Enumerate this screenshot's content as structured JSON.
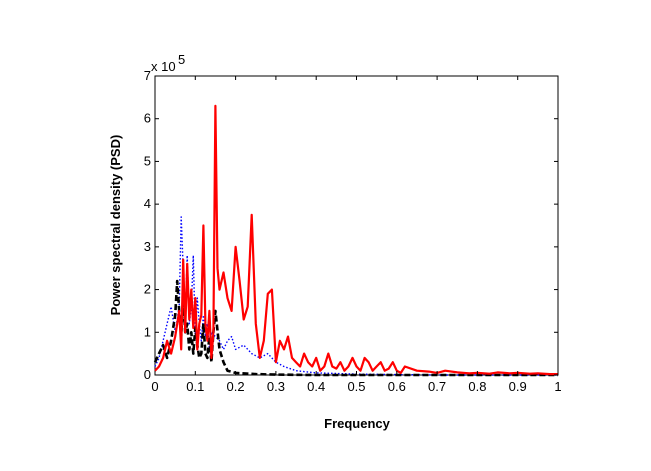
{
  "chart_data": {
    "type": "line",
    "title": "",
    "xlabel": "Frequency",
    "ylabel": "Power spectral density (PSD)",
    "xlim": [
      0,
      1
    ],
    "ylim": [
      0,
      7
    ],
    "y_scale_label": "x 10",
    "y_scale_exponent": "5",
    "xticks": [
      "0",
      "0.1",
      "0.2",
      "0.3",
      "0.4",
      "0.5",
      "0.6",
      "0.7",
      "0.8",
      "0.9",
      "1"
    ],
    "yticks": [
      "0",
      "1",
      "2",
      "3",
      "4",
      "5",
      "6",
      "7"
    ],
    "grid": false,
    "series": [
      {
        "color": "#0000ff",
        "style": "dotted",
        "x": [
          0,
          0.01,
          0.02,
          0.03,
          0.04,
          0.05,
          0.06,
          0.065,
          0.07,
          0.075,
          0.08,
          0.085,
          0.09,
          0.095,
          0.1,
          0.105,
          0.11,
          0.115,
          0.12,
          0.125,
          0.13,
          0.135,
          0.14,
          0.15,
          0.16,
          0.17,
          0.18,
          0.19,
          0.2,
          0.22,
          0.24,
          0.26,
          0.28,
          0.3,
          0.32,
          0.35,
          0.4,
          0.5,
          0.6,
          0.7,
          0.8,
          0.9,
          1.0
        ],
        "y": [
          0.2,
          0.4,
          0.8,
          1.2,
          1.6,
          1.0,
          1.6,
          3.7,
          2.5,
          1.3,
          2.8,
          1.2,
          1.6,
          2.8,
          0.9,
          1.8,
          1.2,
          0.8,
          1.4,
          0.9,
          1.2,
          0.6,
          1.0,
          0.9,
          0.8,
          0.6,
          0.8,
          0.9,
          0.6,
          0.7,
          0.5,
          0.4,
          0.5,
          0.3,
          0.2,
          0.1,
          0.05,
          0.02,
          0.01,
          0.0,
          0.0,
          0.0,
          0.0
        ]
      },
      {
        "color": "#000000",
        "style": "dashed",
        "x": [
          0,
          0.01,
          0.02,
          0.03,
          0.04,
          0.05,
          0.055,
          0.06,
          0.065,
          0.07,
          0.075,
          0.08,
          0.085,
          0.09,
          0.095,
          0.1,
          0.105,
          0.11,
          0.115,
          0.12,
          0.125,
          0.13,
          0.135,
          0.14,
          0.145,
          0.15,
          0.16,
          0.17,
          0.18,
          0.2,
          0.25,
          0.3,
          0.4,
          0.5,
          0.6,
          0.7,
          0.8,
          0.9,
          1.0
        ],
        "y": [
          0.3,
          0.5,
          0.7,
          0.4,
          0.8,
          1.4,
          2.2,
          1.5,
          0.9,
          1.9,
          1.0,
          1.2,
          0.6,
          1.0,
          0.5,
          1.1,
          0.7,
          0.4,
          0.5,
          1.2,
          0.5,
          0.4,
          0.9,
          0.3,
          1.0,
          1.5,
          0.6,
          0.3,
          0.1,
          0.05,
          0.02,
          0.01,
          0.0,
          0.0,
          0.0,
          0.0,
          0.0,
          0.0,
          0.0
        ]
      },
      {
        "color": "#ff0000",
        "style": "solid",
        "x": [
          0,
          0.01,
          0.02,
          0.03,
          0.04,
          0.05,
          0.06,
          0.065,
          0.07,
          0.075,
          0.08,
          0.085,
          0.09,
          0.095,
          0.1,
          0.105,
          0.11,
          0.115,
          0.12,
          0.125,
          0.13,
          0.135,
          0.14,
          0.145,
          0.15,
          0.155,
          0.16,
          0.17,
          0.18,
          0.19,
          0.2,
          0.21,
          0.22,
          0.23,
          0.24,
          0.25,
          0.26,
          0.27,
          0.28,
          0.29,
          0.3,
          0.31,
          0.32,
          0.33,
          0.34,
          0.35,
          0.36,
          0.37,
          0.38,
          0.39,
          0.4,
          0.41,
          0.42,
          0.43,
          0.44,
          0.45,
          0.46,
          0.47,
          0.48,
          0.49,
          0.5,
          0.51,
          0.52,
          0.53,
          0.54,
          0.55,
          0.56,
          0.57,
          0.58,
          0.59,
          0.6,
          0.61,
          0.62,
          0.65,
          0.68,
          0.7,
          0.72,
          0.75,
          0.78,
          0.8,
          0.83,
          0.85,
          0.88,
          0.9,
          0.93,
          0.95,
          0.98,
          1.0
        ],
        "y": [
          0.1,
          0.2,
          0.4,
          0.8,
          0.5,
          0.9,
          1.5,
          0.6,
          2.7,
          1.0,
          2.6,
          1.3,
          2.0,
          1.1,
          1.8,
          0.6,
          1.2,
          1.4,
          3.5,
          1.2,
          0.8,
          1.5,
          0.4,
          1.0,
          6.3,
          2.5,
          2.0,
          2.4,
          1.8,
          1.5,
          3.0,
          2.2,
          1.3,
          1.6,
          3.75,
          1.2,
          0.4,
          0.8,
          1.9,
          2.0,
          0.3,
          0.8,
          0.6,
          0.9,
          0.4,
          0.3,
          0.2,
          0.5,
          0.3,
          0.2,
          0.4,
          0.1,
          0.2,
          0.5,
          0.2,
          0.15,
          0.3,
          0.1,
          0.2,
          0.4,
          0.2,
          0.1,
          0.4,
          0.3,
          0.1,
          0.2,
          0.3,
          0.1,
          0.15,
          0.3,
          0.1,
          0.05,
          0.2,
          0.1,
          0.08,
          0.05,
          0.1,
          0.06,
          0.04,
          0.05,
          0.03,
          0.06,
          0.04,
          0.05,
          0.03,
          0.04,
          0.02,
          0.02
        ]
      }
    ]
  }
}
